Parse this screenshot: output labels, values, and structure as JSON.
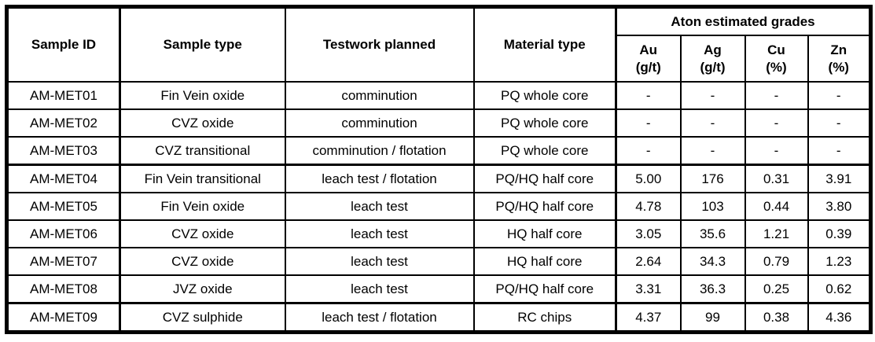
{
  "table": {
    "headers": {
      "sample_id": "Sample ID",
      "sample_type": "Sample type",
      "testwork_planned": "Testwork planned",
      "material_type": "Material type",
      "grades_group": "Aton estimated grades",
      "grade_cols": [
        {
          "element": "Au",
          "unit": "(g/t)"
        },
        {
          "element": "Ag",
          "unit": "(g/t)"
        },
        {
          "element": "Cu",
          "unit": "(%)"
        },
        {
          "element": "Zn",
          "unit": "(%)"
        }
      ]
    },
    "groups": [
      {
        "rows": [
          {
            "sample_id": "AM-MET01",
            "sample_type": "Fin Vein oxide",
            "testwork_planned": "comminution",
            "material_type": "PQ whole core",
            "au": "-",
            "ag": "-",
            "cu": "-",
            "zn": "-"
          },
          {
            "sample_id": "AM-MET02",
            "sample_type": "CVZ oxide",
            "testwork_planned": "comminution",
            "material_type": "PQ whole core",
            "au": "-",
            "ag": "-",
            "cu": "-",
            "zn": "-"
          },
          {
            "sample_id": "AM-MET03",
            "sample_type": "CVZ transitional",
            "testwork_planned": "comminution / flotation",
            "material_type": "PQ whole core",
            "au": "-",
            "ag": "-",
            "cu": "-",
            "zn": "-"
          }
        ]
      },
      {
        "rows": [
          {
            "sample_id": "AM-MET04",
            "sample_type": "Fin Vein transitional",
            "testwork_planned": "leach test / flotation",
            "material_type": "PQ/HQ half core",
            "au": "5.00",
            "ag": "176",
            "cu": "0.31",
            "zn": "3.91"
          },
          {
            "sample_id": "AM-MET05",
            "sample_type": "Fin Vein oxide",
            "testwork_planned": "leach test",
            "material_type": "PQ/HQ half core",
            "au": "4.78",
            "ag": "103",
            "cu": "0.44",
            "zn": "3.80"
          },
          {
            "sample_id": "AM-MET06",
            "sample_type": "CVZ oxide",
            "testwork_planned": "leach test",
            "material_type": "HQ half core",
            "au": "3.05",
            "ag": "35.6",
            "cu": "1.21",
            "zn": "0.39"
          },
          {
            "sample_id": "AM-MET07",
            "sample_type": "CVZ oxide",
            "testwork_planned": "leach test",
            "material_type": "HQ half core",
            "au": "2.64",
            "ag": "34.3",
            "cu": "0.79",
            "zn": "1.23"
          },
          {
            "sample_id": "AM-MET08",
            "sample_type": "JVZ oxide",
            "testwork_planned": "leach test",
            "material_type": "PQ/HQ half core",
            "au": "3.31",
            "ag": "36.3",
            "cu": "0.25",
            "zn": "0.62"
          }
        ]
      },
      {
        "rows": [
          {
            "sample_id": "AM-MET09",
            "sample_type": "CVZ sulphide",
            "testwork_planned": "leach test / flotation",
            "material_type": "RC chips",
            "au": "4.37",
            "ag": "99",
            "cu": "0.38",
            "zn": "4.36"
          }
        ]
      }
    ],
    "colors": {
      "border": "#000000",
      "background": "#ffffff",
      "text": "#000000"
    }
  }
}
